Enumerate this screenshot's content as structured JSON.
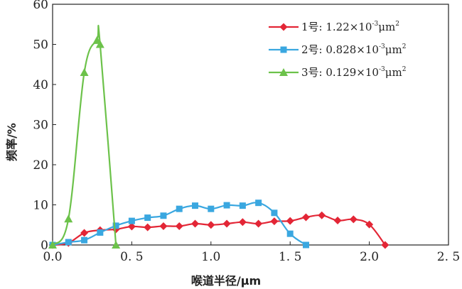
{
  "chart_data": {
    "type": "line",
    "xlabel": "喉道半径/μm",
    "ylabel": "频率/%",
    "xlim": [
      0,
      2.5
    ],
    "ylim": [
      0,
      60
    ],
    "x_ticks": [
      0,
      0.5,
      1.0,
      1.5,
      2.0,
      2.5
    ],
    "x_tick_labels": [
      "0.0",
      "0. 5",
      "1.0",
      "1. 5",
      "2.0",
      "2. 5"
    ],
    "y_ticks": [
      0,
      10,
      20,
      30,
      40,
      50,
      60
    ],
    "y_tick_labels": [
      "0",
      "10",
      "20",
      "30",
      "40",
      "50",
      "60"
    ],
    "grid": false,
    "legend_position": "top-right",
    "series": [
      {
        "name": "1号",
        "legend": {
          "prefix": "1号: 1.22×10",
          "exp": "-3",
          "suffix": "μm",
          "sup2": "2"
        },
        "color": "#e32636",
        "marker": "diamond",
        "x": [
          0.0,
          0.1,
          0.2,
          0.3,
          0.4,
          0.5,
          0.6,
          0.7,
          0.8,
          0.9,
          1.0,
          1.1,
          1.2,
          1.3,
          1.4,
          1.5,
          1.6,
          1.7,
          1.8,
          1.9,
          2.0,
          2.1
        ],
        "values": [
          0,
          0.5,
          3.0,
          3.7,
          3.9,
          4.6,
          4.4,
          4.7,
          4.7,
          5.3,
          5.0,
          5.3,
          5.7,
          5.3,
          5.9,
          6.0,
          6.9,
          7.4,
          6.1,
          6.4,
          5.1,
          0
        ]
      },
      {
        "name": "2号",
        "legend": {
          "prefix": "2号: 0.828×10",
          "exp": "-3",
          "suffix": "μm",
          "sup2": "2"
        },
        "color": "#3aa7e0",
        "marker": "square",
        "x": [
          0.0,
          0.1,
          0.2,
          0.3,
          0.4,
          0.5,
          0.6,
          0.7,
          0.8,
          0.9,
          1.0,
          1.1,
          1.2,
          1.3,
          1.4,
          1.5,
          1.6
        ],
        "values": [
          0,
          0.7,
          1.2,
          3.1,
          4.8,
          6.0,
          6.8,
          7.3,
          9.0,
          9.8,
          9.0,
          9.9,
          9.8,
          10.5,
          8.0,
          2.8,
          0
        ]
      },
      {
        "name": "3号",
        "legend": {
          "prefix": "3号: 0.129×10",
          "exp": "-3",
          "suffix": "μm",
          "sup2": "2"
        },
        "color": "#6cc24a",
        "marker": "triangle",
        "x": [
          0.0,
          0.1,
          0.2,
          0.28,
          0.3,
          0.4
        ],
        "values": [
          0,
          6.5,
          43,
          51,
          50,
          0
        ]
      }
    ]
  }
}
